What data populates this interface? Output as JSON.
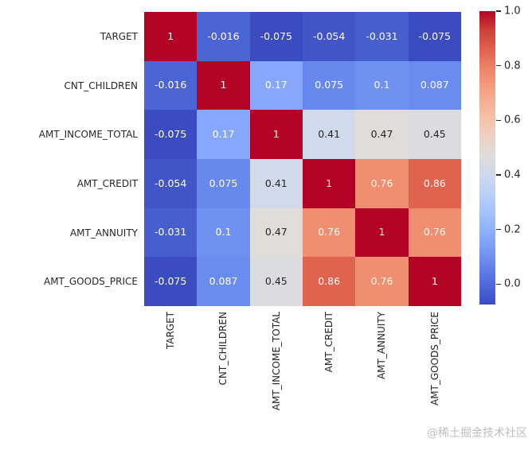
{
  "watermark": "@稀土掘金技术社区",
  "chart_data": {
    "type": "heatmap",
    "title": "",
    "xlabel": "",
    "ylabel": "",
    "labels": [
      "TARGET",
      "CNT_CHILDREN",
      "AMT_INCOME_TOTAL",
      "AMT_CREDIT",
      "AMT_ANNUITY",
      "AMT_GOODS_PRICE"
    ],
    "matrix": [
      [
        1,
        -0.016,
        -0.075,
        -0.054,
        -0.031,
        -0.075
      ],
      [
        -0.016,
        1,
        0.17,
        0.075,
        0.1,
        0.087
      ],
      [
        -0.075,
        0.17,
        1,
        0.41,
        0.47,
        0.45
      ],
      [
        -0.054,
        0.075,
        0.41,
        1,
        0.76,
        0.86
      ],
      [
        -0.031,
        0.1,
        0.47,
        0.76,
        1,
        0.76
      ],
      [
        -0.075,
        0.087,
        0.45,
        0.86,
        0.76,
        1
      ]
    ],
    "annotations": [
      [
        "1",
        "-0.016",
        "-0.075",
        "-0.054",
        "-0.031",
        "-0.075"
      ],
      [
        "-0.016",
        "1",
        "0.17",
        "0.075",
        "0.1",
        "0.087"
      ],
      [
        "-0.075",
        "0.17",
        "1",
        "0.41",
        "0.47",
        "0.45"
      ],
      [
        "-0.054",
        "0.075",
        "0.41",
        "1",
        "0.76",
        "0.86"
      ],
      [
        "-0.031",
        "0.1",
        "0.47",
        "0.76",
        "1",
        "0.76"
      ],
      [
        "-0.075",
        "0.087",
        "0.45",
        "0.86",
        "0.76",
        "1"
      ]
    ],
    "colormap": "coolwarm",
    "vmin": -0.075,
    "vmax": 1.0,
    "colorbar_ticks": [
      "1.0",
      "0.8",
      "0.6",
      "0.4",
      "0.2",
      "0.0"
    ],
    "colorbar_tick_values": [
      1.0,
      0.8,
      0.6,
      0.4,
      0.2,
      0.0
    ],
    "legend_position": "right",
    "grid": false,
    "colors": {
      "background": "#ffffff",
      "text_dark": "#262626",
      "text_light": "#ffffff",
      "colormap_low": "#3b4cc0",
      "colormap_mid": "#dddddd",
      "colormap_high": "#b40426",
      "watermark": "#bcbcbc"
    }
  }
}
